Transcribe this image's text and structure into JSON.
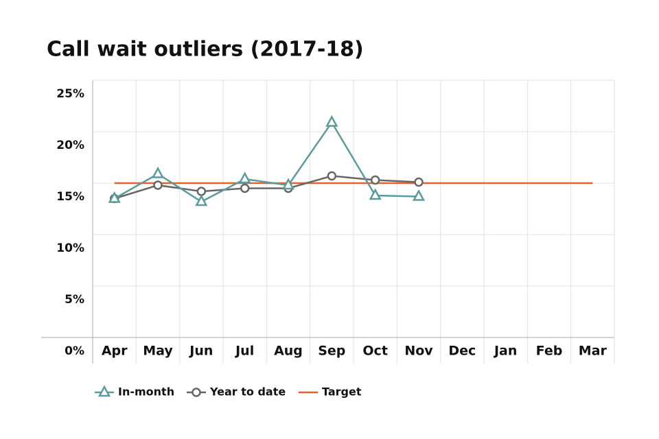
{
  "chart_data": {
    "type": "line",
    "title": "Call wait outliers  (2017-18)",
    "categories": [
      "Apr",
      "May",
      "Jun",
      "Jul",
      "Aug",
      "Sep",
      "Oct",
      "Nov",
      "Dec",
      "Jan",
      "Feb",
      "Mar"
    ],
    "series": [
      {
        "name": "In-month",
        "color": "#5a9b9b",
        "marker": "triangle",
        "values": [
          13.5,
          15.9,
          13.2,
          15.4,
          14.8,
          20.9,
          13.8,
          13.7,
          null,
          null,
          null,
          null
        ]
      },
      {
        "name": "Year to date",
        "color": "#666666",
        "marker": "circle",
        "values": [
          13.5,
          14.8,
          14.2,
          14.5,
          14.5,
          15.7,
          15.3,
          15.1,
          null,
          null,
          null,
          null
        ]
      },
      {
        "name": "Target",
        "color": "#e0622f",
        "marker": "none",
        "values": [
          15,
          15,
          15,
          15,
          15,
          15,
          15,
          15,
          15,
          15,
          15,
          15
        ]
      }
    ],
    "ylim": [
      0,
      25
    ],
    "yticks": [
      {
        "value": 0,
        "label": "0%"
      },
      {
        "value": 5,
        "label": "5%"
      },
      {
        "value": 10,
        "label": "10%"
      },
      {
        "value": 15,
        "label": "15%"
      },
      {
        "value": 20,
        "label": "20%"
      },
      {
        "value": 25,
        "label": "25%"
      }
    ],
    "grid": true,
    "legend": "bottom"
  }
}
